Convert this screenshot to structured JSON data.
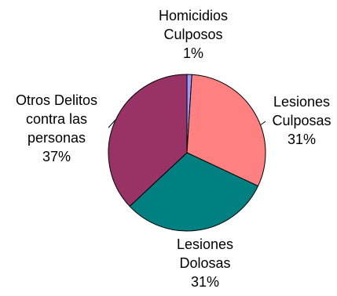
{
  "chart_data": {
    "type": "pie",
    "slices": [
      {
        "name": "Homicidios Culposos",
        "lines": [
          "Homicidios",
          "Culposos"
        ],
        "pct_label": "1%",
        "value": 1,
        "color": "#9999ff"
      },
      {
        "name": "Lesiones Culposas",
        "lines": [
          "Lesiones",
          "Culposas"
        ],
        "pct_label": "31%",
        "value": 31,
        "color": "#ff8080"
      },
      {
        "name": "Lesiones Dolosas",
        "lines": [
          "Lesiones",
          "Dolosas"
        ],
        "pct_label": "31%",
        "value": 31,
        "color": "#008080"
      },
      {
        "name": "Otros Delitos contra las personas",
        "lines": [
          "Otros Delitos",
          "contra las",
          "personas"
        ],
        "pct_label": "37%",
        "value": 37,
        "color": "#993366"
      }
    ],
    "title": "",
    "legend": "none",
    "labels": "outside"
  }
}
